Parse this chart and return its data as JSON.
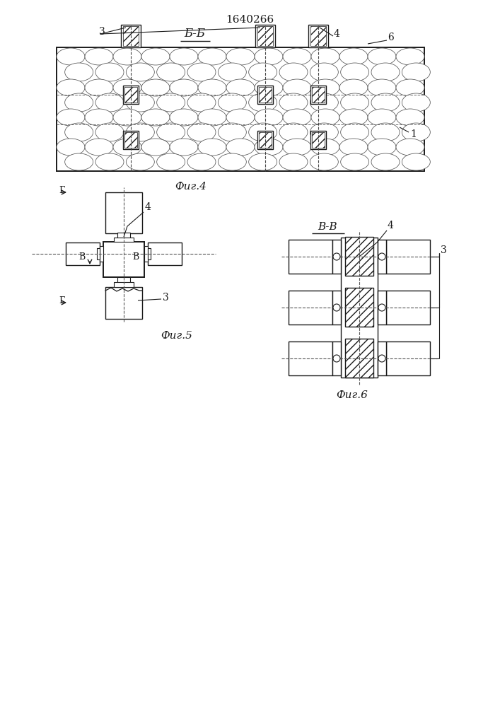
{
  "bg_color": "#ffffff",
  "line_color": "#1a1a1a",
  "patent_number": "1640266",
  "fig4_label": "Б-Б",
  "fig4_caption": "Фиг.4",
  "fig5_caption": "Фиг.5",
  "fig6_caption": "Фиг.6",
  "fig6_label": "В-В",
  "label1": "1",
  "label3": "3",
  "label4": "4",
  "label6": "6",
  "labelB": "Б",
  "labelV": "В",
  "labelG": "Г"
}
